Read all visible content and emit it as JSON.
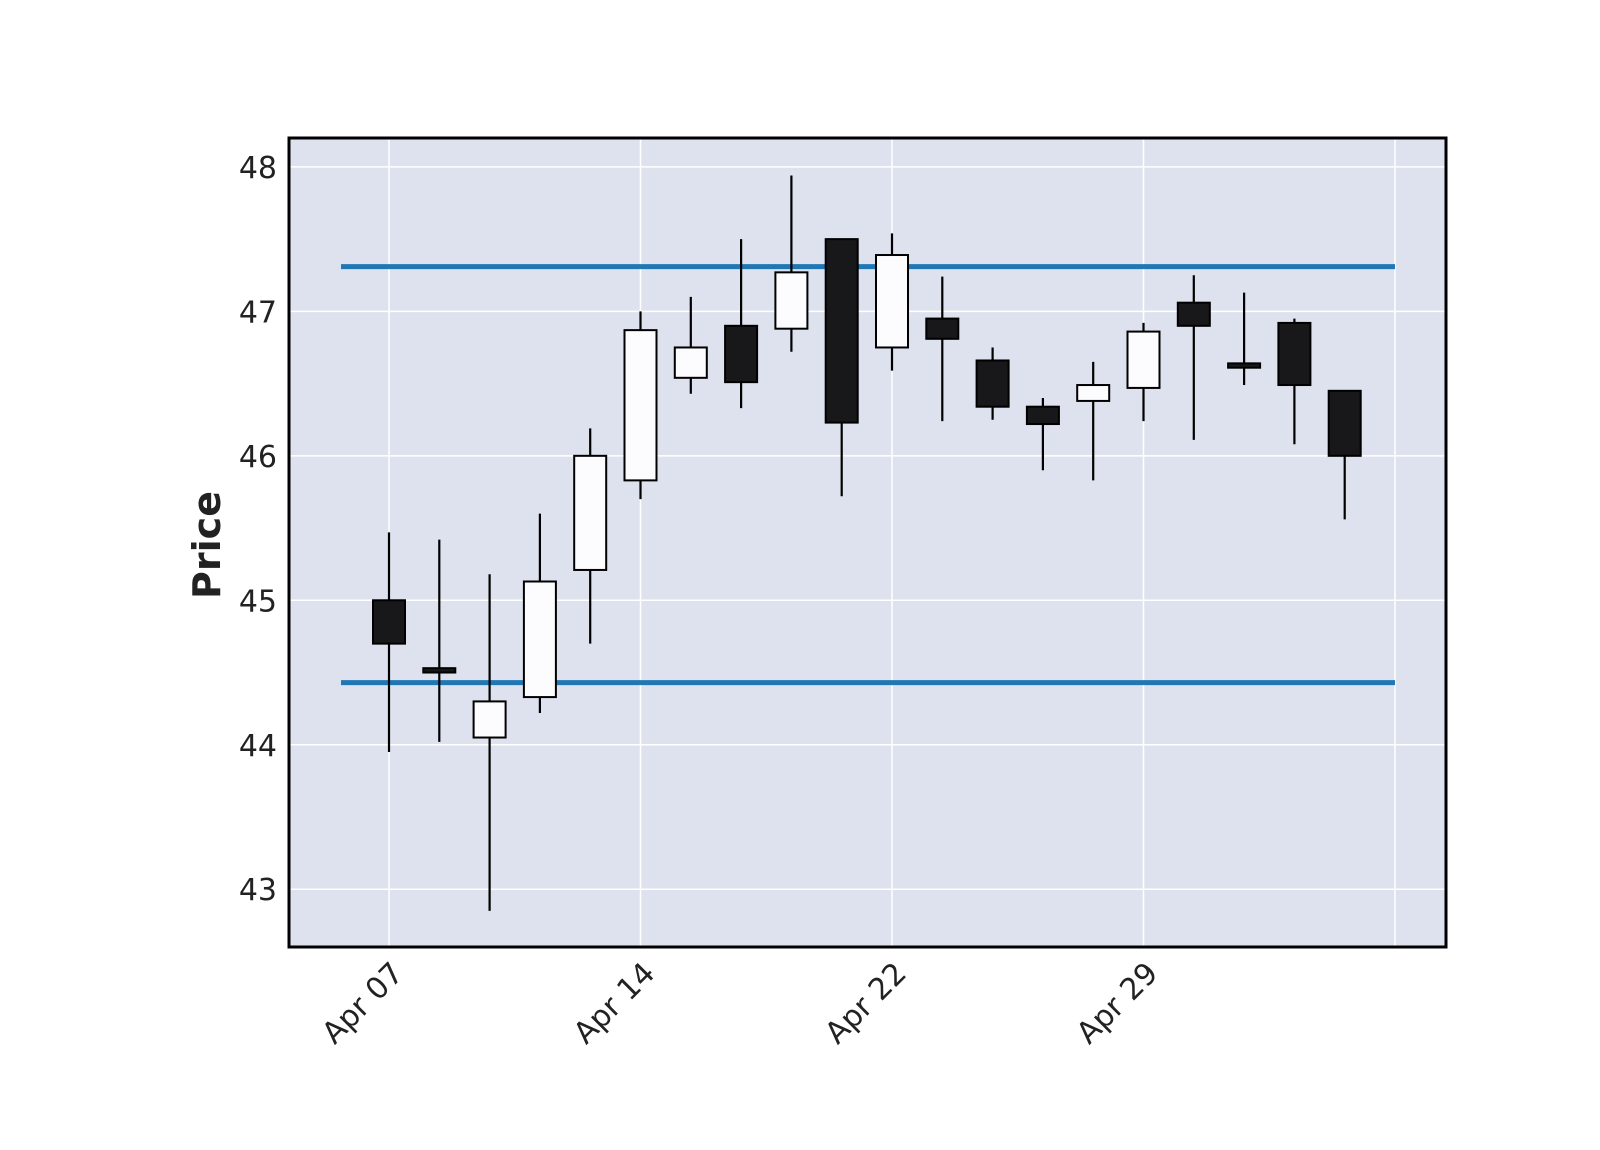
{
  "chart_data": {
    "type": "candlestick",
    "title": "",
    "xlabel": "",
    "ylabel": "Price",
    "ylim": [
      42.6,
      48.2
    ],
    "grid": true,
    "y_ticks": [
      43,
      44,
      45,
      46,
      47,
      48
    ],
    "x_tick_labels": [
      {
        "date": "2024-04-07",
        "label": "Apr 07"
      },
      {
        "date": "2024-04-14",
        "label": "Apr 14"
      },
      {
        "date": "2024-04-22",
        "label": "Apr 22"
      },
      {
        "date": "2024-04-29",
        "label": "Apr 29"
      },
      {
        "date": "2024-05-06",
        "label": ""
      }
    ],
    "colors": {
      "background": "#dde2ee",
      "grid": "#ffffff",
      "up_body": "#fcfcfe",
      "down_body": "#18181a",
      "edge": "#000000",
      "hline": "#1f77b4"
    },
    "hlines": [
      47.31,
      44.43
    ],
    "candles": [
      {
        "date": "2024-04-07",
        "open": 45.0,
        "high": 45.47,
        "low": 43.95,
        "close": 44.7
      },
      {
        "date": "2024-04-08",
        "open": 44.53,
        "high": 45.42,
        "low": 44.02,
        "close": 44.5
      },
      {
        "date": "2024-04-09",
        "open": 44.05,
        "high": 45.18,
        "low": 42.85,
        "close": 44.3
      },
      {
        "date": "2024-04-10",
        "open": 44.33,
        "high": 45.6,
        "low": 44.22,
        "close": 45.13
      },
      {
        "date": "2024-04-11",
        "open": 45.21,
        "high": 46.19,
        "low": 44.7,
        "close": 46.0
      },
      {
        "date": "2024-04-14",
        "open": 45.83,
        "high": 47.0,
        "low": 45.7,
        "close": 46.87
      },
      {
        "date": "2024-04-15",
        "open": 46.54,
        "high": 47.1,
        "low": 46.43,
        "close": 46.75
      },
      {
        "date": "2024-04-16",
        "open": 46.9,
        "high": 47.5,
        "low": 46.33,
        "close": 46.51
      },
      {
        "date": "2024-04-17",
        "open": 46.88,
        "high": 47.94,
        "low": 46.72,
        "close": 47.27
      },
      {
        "date": "2024-04-18",
        "open": 47.5,
        "high": 47.5,
        "low": 45.72,
        "close": 46.23
      },
      {
        "date": "2024-04-22",
        "open": 46.75,
        "high": 47.54,
        "low": 46.59,
        "close": 47.39
      },
      {
        "date": "2024-04-23",
        "open": 46.95,
        "high": 47.24,
        "low": 46.24,
        "close": 46.81
      },
      {
        "date": "2024-04-24",
        "open": 46.66,
        "high": 46.75,
        "low": 46.25,
        "close": 46.34
      },
      {
        "date": "2024-04-25",
        "open": 46.34,
        "high": 46.4,
        "low": 45.9,
        "close": 46.22
      },
      {
        "date": "2024-04-26",
        "open": 46.38,
        "high": 46.65,
        "low": 45.83,
        "close": 46.49
      },
      {
        "date": "2024-04-29",
        "open": 46.47,
        "high": 46.92,
        "low": 46.24,
        "close": 46.86
      },
      {
        "date": "2024-04-30",
        "open": 47.06,
        "high": 47.25,
        "low": 46.11,
        "close": 46.9
      },
      {
        "date": "2024-05-01",
        "open": 46.64,
        "high": 47.13,
        "low": 46.49,
        "close": 46.61
      },
      {
        "date": "2024-05-02",
        "open": 46.92,
        "high": 46.95,
        "low": 46.08,
        "close": 46.49
      },
      {
        "date": "2024-05-03",
        "open": 46.45,
        "high": 46.45,
        "low": 45.56,
        "close": 46.0
      }
    ]
  }
}
